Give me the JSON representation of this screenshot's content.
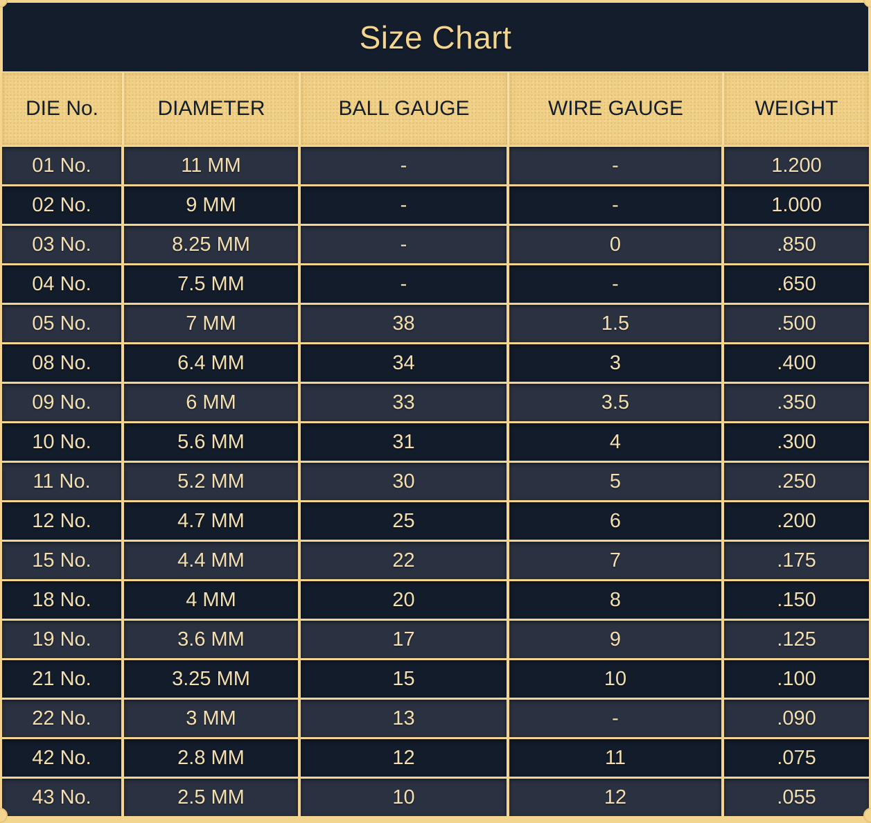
{
  "title": "Size Chart",
  "columns": [
    "DIE No.",
    "DIAMETER",
    "BALL GAUGE",
    "WIRE GAUGE",
    "WEIGHT"
  ],
  "rows": [
    [
      "01 No.",
      "11 MM",
      "-",
      "-",
      "1.200"
    ],
    [
      "02 No.",
      "9 MM",
      "-",
      "-",
      "1.000"
    ],
    [
      "03 No.",
      "8.25 MM",
      "-",
      "0",
      ".850"
    ],
    [
      "04 No.",
      "7.5 MM",
      "-",
      "-",
      ".650"
    ],
    [
      "05 No.",
      "7 MM",
      "38",
      "1.5",
      ".500"
    ],
    [
      "08 No.",
      "6.4 MM",
      "34",
      "3",
      ".400"
    ],
    [
      "09 No.",
      "6 MM",
      "33",
      "3.5",
      ".350"
    ],
    [
      "10 No.",
      "5.6 MM",
      "31",
      "4",
      ".300"
    ],
    [
      "11 No.",
      "5.2 MM",
      "30",
      "5",
      ".250"
    ],
    [
      "12 No.",
      "4.7 MM",
      "25",
      "6",
      ".200"
    ],
    [
      "15 No.",
      "4.4 MM",
      "22",
      "7",
      ".175"
    ],
    [
      "18 No.",
      "4 MM",
      "20",
      "8",
      ".150"
    ],
    [
      "19 No.",
      "3.6 MM",
      "17",
      "9",
      ".125"
    ],
    [
      "21 No.",
      "3.25 MM",
      "15",
      "10",
      ".100"
    ],
    [
      "22 No.",
      "3 MM",
      "13",
      "-",
      ".090"
    ],
    [
      "42 No.",
      "2.8 MM",
      "12",
      "11",
      ".075"
    ],
    [
      "43 No.",
      "2.5 MM",
      "10",
      "12",
      ".055"
    ]
  ],
  "colors": {
    "gold": "#f3d58f",
    "navy": "#131d2b",
    "slate": "#2a3140"
  }
}
